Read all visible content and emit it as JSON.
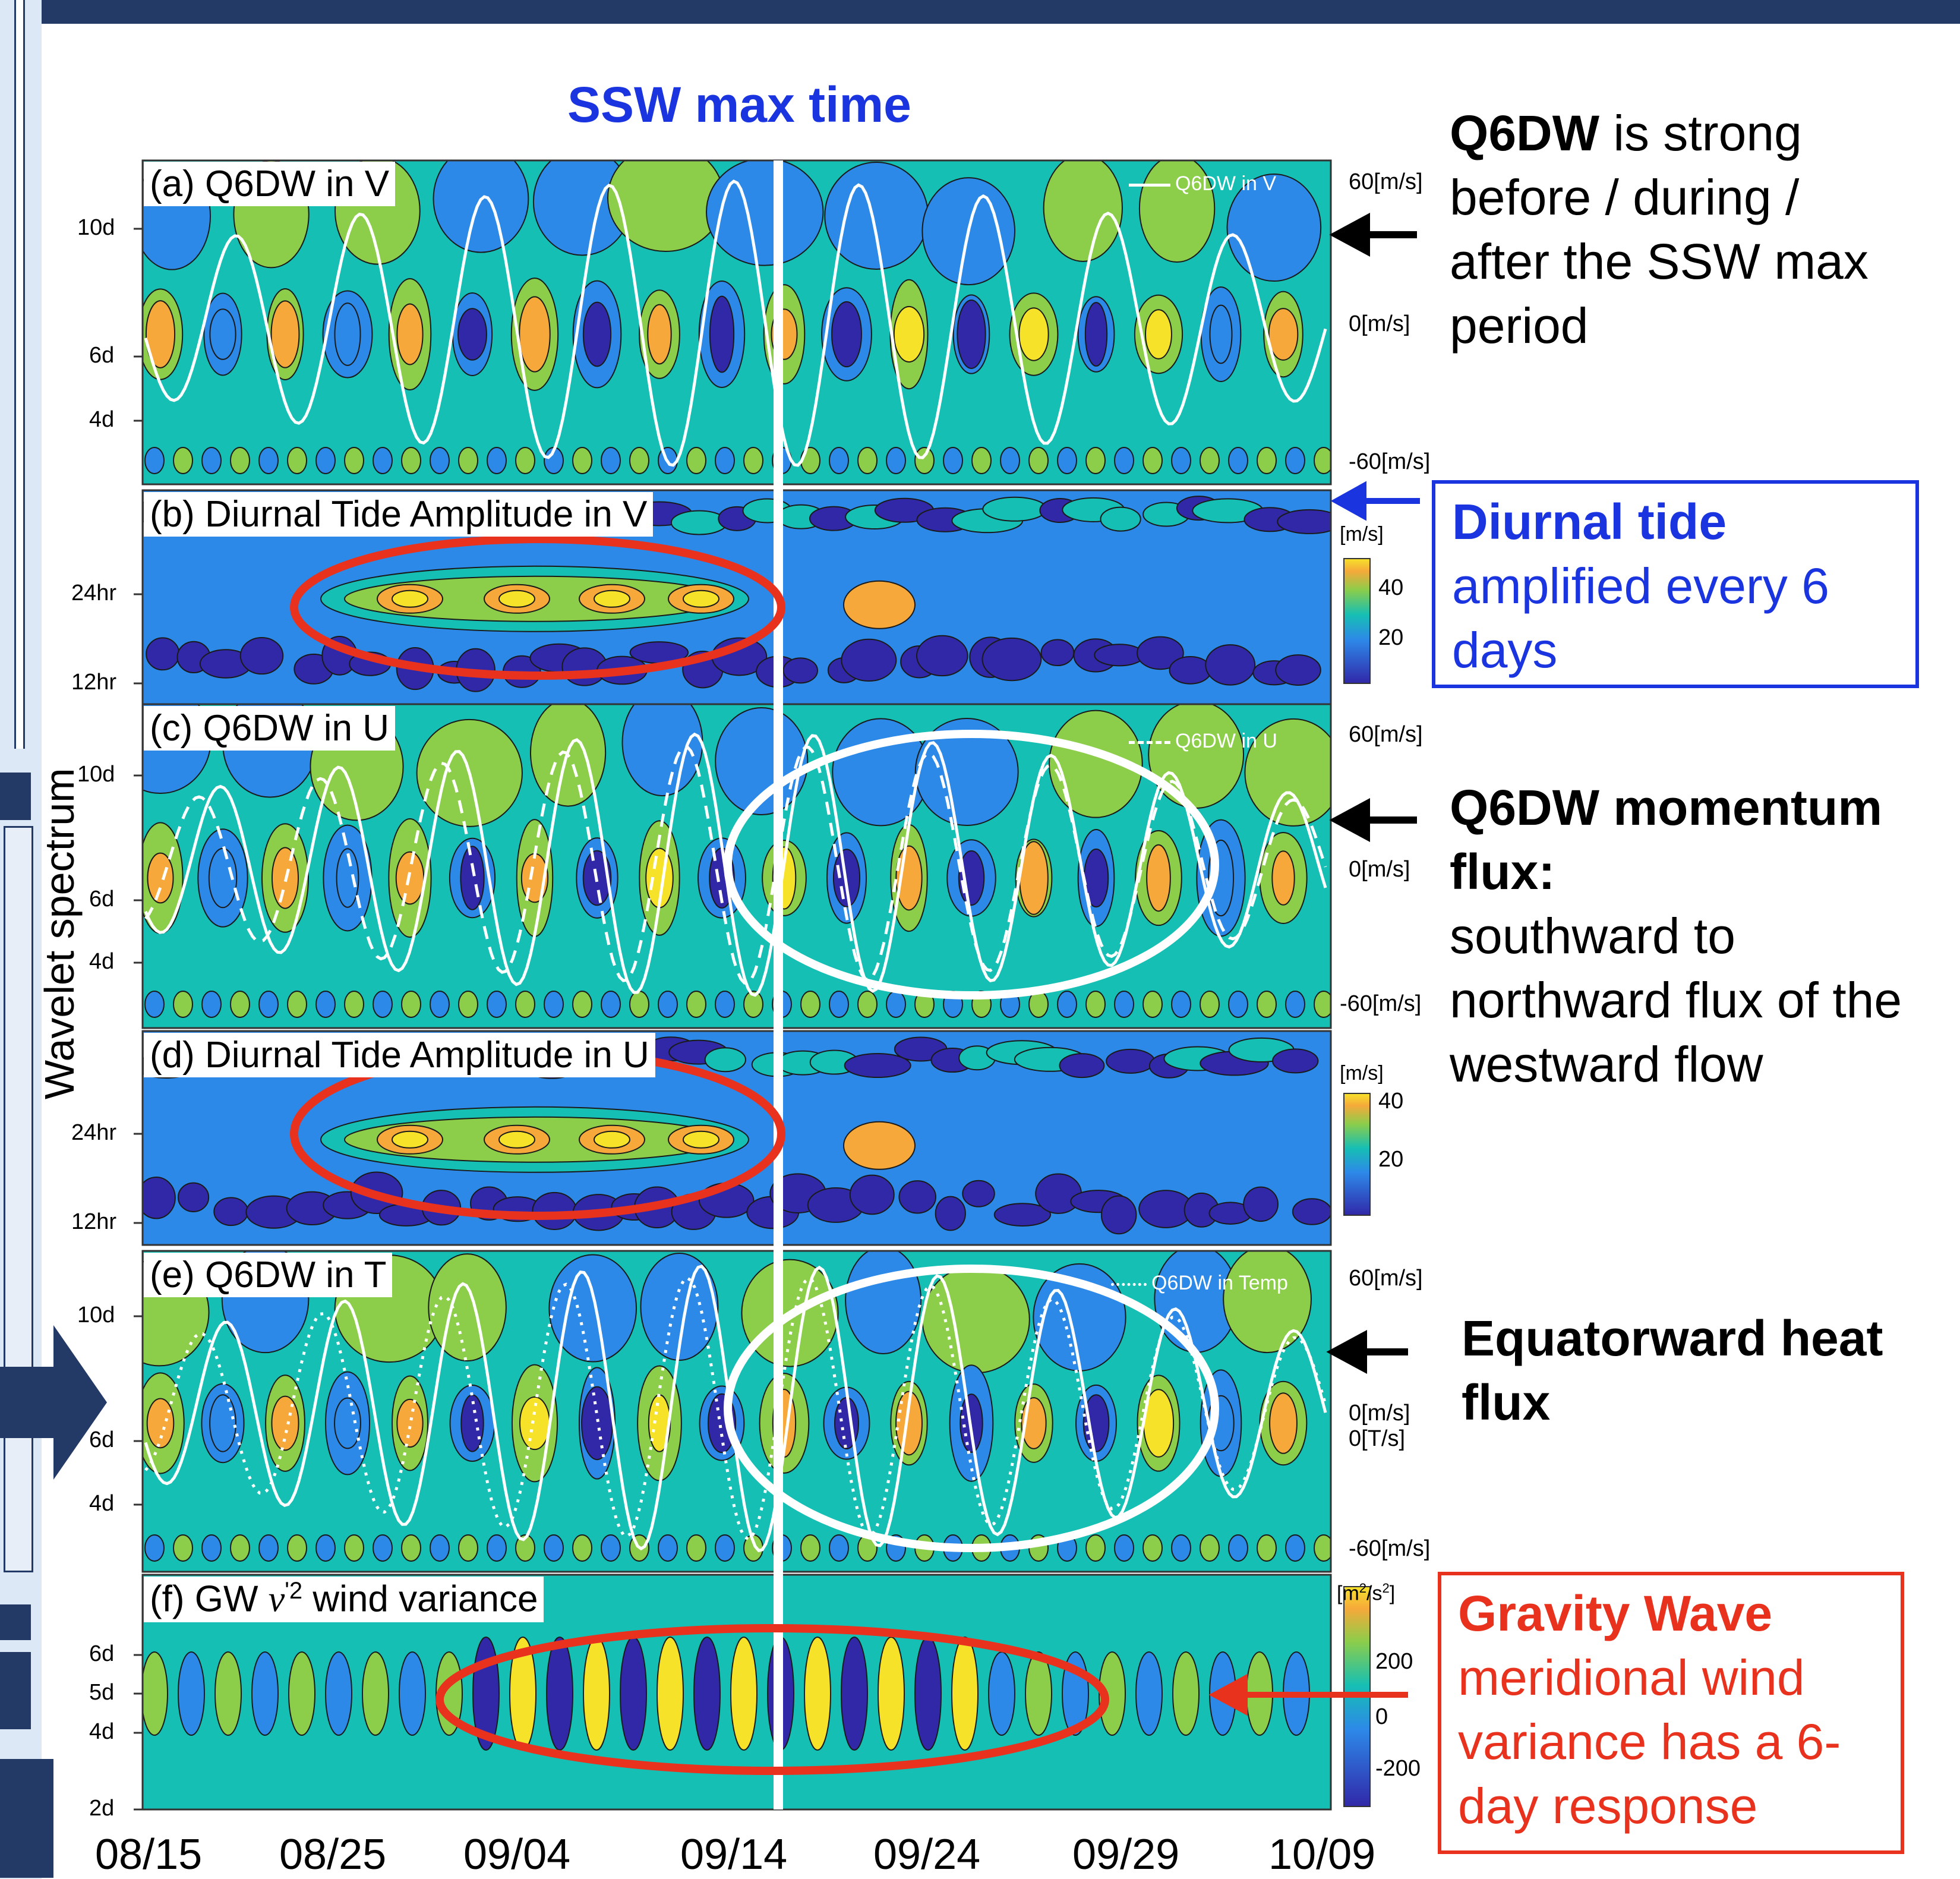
{
  "ssw_label": "SSW max time",
  "y_axis_label": "Wavelet spectrum",
  "x_ticks": [
    "08/15",
    "08/25",
    "09/04",
    "09/14",
    "09/24",
    "09/29",
    "10/09"
  ],
  "panels": [
    {
      "id": "a",
      "title": "(a) Q6DW in V",
      "yticks": [
        "10d",
        "6d",
        "4d"
      ],
      "legend": "Q6DW in V",
      "right_labels": [
        "60[m/s]",
        "0[m/s]",
        "-60[m/s]"
      ]
    },
    {
      "id": "b",
      "title": "(b) Diurnal Tide Amplitude in V",
      "yticks": [
        "24hr",
        "12hr"
      ],
      "colorbar_unit": "[m/s]",
      "colorbar_ticks": [
        "40",
        "20"
      ]
    },
    {
      "id": "c",
      "title": "(c) Q6DW in U",
      "yticks": [
        "10d",
        "6d",
        "4d"
      ],
      "legend": "Q6DW in U",
      "right_labels": [
        "60[m/s]",
        "0[m/s]",
        "-60[m/s]"
      ]
    },
    {
      "id": "d",
      "title": "(d) Diurnal Tide Amplitude in U",
      "yticks": [
        "24hr",
        "12hr"
      ],
      "colorbar_unit": "[m/s]",
      "colorbar_ticks": [
        "40",
        "20"
      ]
    },
    {
      "id": "e",
      "title": "(e) Q6DW in T",
      "yticks": [
        "10d",
        "6d",
        "4d"
      ],
      "legend": "Q6DW in Temp",
      "right_labels": [
        "60[m/s]",
        "0[m/s]",
        "0[T/s]",
        "-60[m/s]"
      ]
    },
    {
      "id": "f",
      "title_prefix": "(f) GW",
      "title_var": "v",
      "title_sup": "'2",
      "title_suffix": "wind variance",
      "yticks": [
        "6d",
        "5d",
        "4d",
        "2d"
      ],
      "colorbar_unit": "[m",
      "colorbar_unit_sup1": "2",
      "colorbar_unit_mid": "/s",
      "colorbar_unit_sup2": "2",
      "colorbar_unit_end": "]",
      "colorbar_ticks": [
        "200",
        "0",
        "-200"
      ]
    }
  ],
  "annotations": {
    "q6dw": {
      "bold": "Q6DW",
      "text1": " is strong",
      "text2": "before / during /",
      "text3": "after the SSW max",
      "text4": "period"
    },
    "diurnal": {
      "bold": "Diurnal tide",
      "text1": "amplified every 6",
      "text2": "days",
      "color": "#1a35e0"
    },
    "momentum": {
      "bold1": "Q6DW momentum",
      "bold2": "flux:",
      "text1": "southward to",
      "text2": "northward flux of the",
      "text3": "westward flow"
    },
    "heat": {
      "bold1": "Equatorward heat",
      "bold2": "flux"
    },
    "gw": {
      "bold": "Gravity Wave",
      "text1": "meridional wind",
      "text2": "variance has a 6-",
      "text3": "day response",
      "color": "#e8321e"
    }
  },
  "colors": {
    "accent_blue": "#1a35e0",
    "accent_red": "#e8321e",
    "frame_navy": "#243a66",
    "field_teal": "#16bfb4",
    "field_blue": "#2d89e8",
    "field_navy": "#3128a8",
    "field_green": "#8ccd4a",
    "field_yellow": "#f7e22a",
    "field_orange": "#f6a93a"
  },
  "chart_data": {
    "type": "heatmap",
    "description_panels": [
      "(a) Q6DW in V",
      "(b) Diurnal Tide Amplitude in V",
      "(c) Q6DW in U",
      "(d) Diurnal Tide Amplitude in U",
      "(e) Q6DW in T",
      "(f) GW v'2 wind variance"
    ],
    "x_categories": [
      "08/15",
      "08/25",
      "09/04",
      "09/14",
      "09/24",
      "09/29",
      "10/09"
    ],
    "series_line_range": [
      -60,
      60
    ],
    "colorbar_tide": [
      20,
      40
    ],
    "colorbar_gw": [
      -200,
      200
    ],
    "ssw_max": "09/14"
  }
}
